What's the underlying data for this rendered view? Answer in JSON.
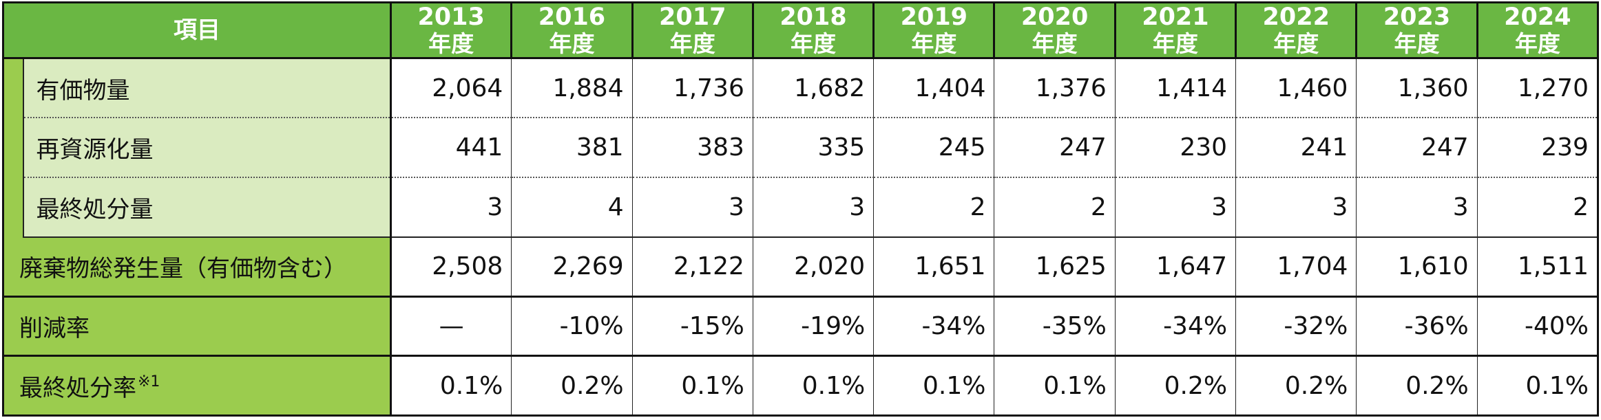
{
  "header": {
    "item_label": "項目",
    "year_unit": "年度",
    "years": [
      "2013",
      "2016",
      "2017",
      "2018",
      "2019",
      "2020",
      "2021",
      "2022",
      "2023",
      "2024"
    ]
  },
  "rows": {
    "valuables": {
      "label": "有価物量",
      "values": [
        "2,064",
        "1,884",
        "1,736",
        "1,682",
        "1,404",
        "1,376",
        "1,414",
        "1,460",
        "1,360",
        "1,270"
      ]
    },
    "recycled": {
      "label": "再資源化量",
      "values": [
        "441",
        "381",
        "383",
        "335",
        "245",
        "247",
        "230",
        "241",
        "247",
        "239"
      ]
    },
    "final_disposal": {
      "label": "最終処分量",
      "values": [
        "3",
        "4",
        "3",
        "3",
        "2",
        "2",
        "3",
        "3",
        "3",
        "2"
      ]
    },
    "total_waste": {
      "label": "廃棄物総発生量（有価物含む）",
      "values": [
        "2,508",
        "2,269",
        "2,122",
        "2,020",
        "1,651",
        "1,625",
        "1,647",
        "1,704",
        "1,610",
        "1,511"
      ]
    },
    "reduction_rate": {
      "label": "削減率",
      "values": [
        "—",
        "-10%",
        "-15%",
        "-19%",
        "-34%",
        "-35%",
        "-34%",
        "-32%",
        "-36%",
        "-40%"
      ]
    },
    "final_disposal_rate": {
      "label": "最終処分率",
      "note": "※1",
      "values": [
        "0.1%",
        "0.2%",
        "0.1%",
        "0.1%",
        "0.1%",
        "0.1%",
        "0.2%",
        "0.2%",
        "0.2%",
        "0.1%"
      ]
    }
  }
}
